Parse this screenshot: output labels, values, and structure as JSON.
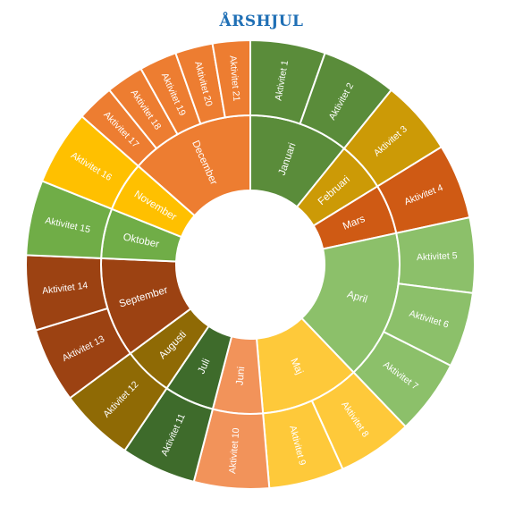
{
  "chart_data": {
    "type": "sunburst",
    "title": "ÅRSHJUL",
    "title_color": "#1f6fb5",
    "levels": [
      "månad",
      "aktivitet"
    ],
    "months": [
      {
        "name": "Januari",
        "color": "#5a8c3a",
        "activities": [
          {
            "name": "Aktivitet 1",
            "value": 1
          },
          {
            "name": "Aktivitet 2",
            "value": 1
          }
        ]
      },
      {
        "name": "Februari",
        "color": "#cc9a06",
        "activities": [
          {
            "name": "Aktivitet 3",
            "value": 1
          }
        ]
      },
      {
        "name": "Mars",
        "color": "#cf5a14",
        "activities": [
          {
            "name": "Aktivitet 4",
            "value": 1
          }
        ]
      },
      {
        "name": "April",
        "color": "#8cc06a",
        "activities": [
          {
            "name": "Aktivitet 5",
            "value": 1
          },
          {
            "name": "Aktivitet 6",
            "value": 1
          },
          {
            "name": "Aktivitet 7",
            "value": 1
          }
        ]
      },
      {
        "name": "Maj",
        "color": "#fec93a",
        "activities": [
          {
            "name": "Aktivitet 8",
            "value": 1
          },
          {
            "name": "Aktivitet 9",
            "value": 1
          }
        ]
      },
      {
        "name": "Juni",
        "color": "#f2935a",
        "activities": [
          {
            "name": "Aktivitet 10",
            "value": 1
          }
        ]
      },
      {
        "name": "Juli",
        "color": "#3e6b2b",
        "activities": [
          {
            "name": "Aktivitet 11",
            "value": 1
          }
        ]
      },
      {
        "name": "Augusti",
        "color": "#8f6a05",
        "activities": [
          {
            "name": "Aktivitet 12",
            "value": 1
          }
        ]
      },
      {
        "name": "September",
        "color": "#9c4212",
        "activities": [
          {
            "name": "Aktivitet 13",
            "value": 1
          },
          {
            "name": "Aktivitet 14",
            "value": 1
          }
        ]
      },
      {
        "name": "Oktober",
        "color": "#70ad47",
        "activities": [
          {
            "name": "Aktivitet 15",
            "value": 1
          }
        ]
      },
      {
        "name": "November",
        "color": "#ffc000",
        "activities": [
          {
            "name": "Aktivitet 16",
            "value": 1
          }
        ]
      },
      {
        "name": "December",
        "color": "#ed7d31",
        "activities": [
          {
            "name": "Aktivitet 17",
            "value": 0.5
          },
          {
            "name": "Aktivitet 18",
            "value": 0.5
          },
          {
            "name": "Aktivitet 19",
            "value": 0.5
          },
          {
            "name": "Aktivitet 20",
            "value": 0.5
          },
          {
            "name": "Aktivitet 21",
            "value": 0.5
          }
        ]
      }
    ]
  }
}
